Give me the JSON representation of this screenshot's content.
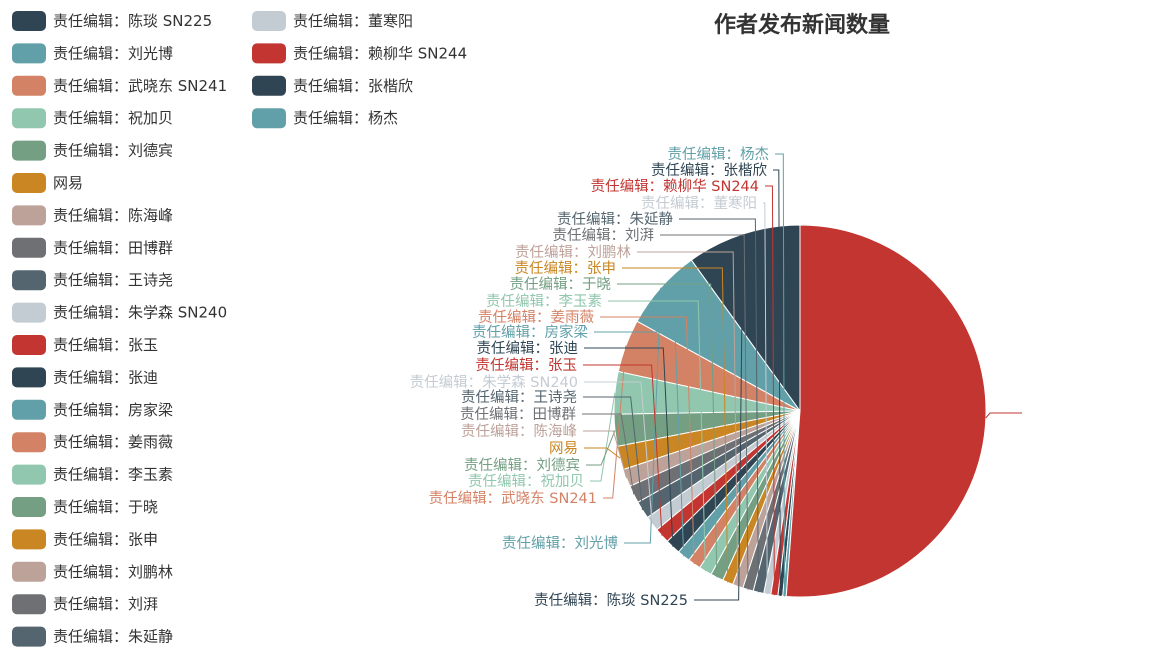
{
  "chart_data": {
    "type": "pie",
    "title": "作者发布新闻数量",
    "label_left": "责任编辑：",
    "categories": [
      "陈琰 SN225",
      "刘光博",
      "武晓东 SN241",
      "祝加贝",
      "刘德宾",
      "网易",
      "陈海峰",
      "田博群",
      "王诗尧",
      "朱学森 SN240",
      "张玉",
      "张迪",
      "房家梁",
      "姜雨薇",
      "李玉素",
      "于晓",
      "张申",
      "刘鹏林",
      "刘湃",
      "朱延静",
      "董寒阳",
      "赖柳华 SN244",
      "张楷欣",
      "杨杰"
    ],
    "slices": [
      {
        "name": "陈琰 SN225",
        "value": 9.7,
        "color": "#2f4554",
        "prefixed": true
      },
      {
        "name": "刘光博",
        "value": 6.9,
        "color": "#61a0a8",
        "prefixed": true
      },
      {
        "name": "武晓东 SN241",
        "value": 4.5,
        "color": "#d48265",
        "prefixed": true
      },
      {
        "name": "祝加贝",
        "value": 3.6,
        "color": "#91c7ae",
        "prefixed": true
      },
      {
        "name": "刘德宾",
        "value": 2.7,
        "color": "#749f83",
        "prefixed": true
      },
      {
        "name": "网易",
        "value": 2.0,
        "color": "#ca8622",
        "prefixed": false
      },
      {
        "name": "陈海峰",
        "value": 1.5,
        "color": "#bda29a",
        "prefixed": true
      },
      {
        "name": "田博群",
        "value": 1.5,
        "color": "#6e7074",
        "prefixed": true
      },
      {
        "name": "王诗尧",
        "value": 1.5,
        "color": "#546570",
        "prefixed": true
      },
      {
        "name": "朱学森 SN240",
        "value": 1.3,
        "color": "#c4ccd3",
        "prefixed": true
      },
      {
        "name": "张玉",
        "value": 1.3,
        "color": "#c23531",
        "prefixed": true
      },
      {
        "name": "张迪",
        "value": 1.3,
        "color": "#2f4554",
        "prefixed": true
      },
      {
        "name": "房家梁",
        "value": 1.1,
        "color": "#61a0a8",
        "prefixed": true
      },
      {
        "name": "姜雨薇",
        "value": 1.1,
        "color": "#d48265",
        "prefixed": true
      },
      {
        "name": "李玉素",
        "value": 1.1,
        "color": "#91c7ae",
        "prefixed": true
      },
      {
        "name": "于晓",
        "value": 1.1,
        "color": "#749f83",
        "prefixed": true
      },
      {
        "name": "张申",
        "value": 0.9,
        "color": "#ca8622",
        "prefixed": true
      },
      {
        "name": "刘鹏林",
        "value": 0.9,
        "color": "#bda29a",
        "prefixed": true
      },
      {
        "name": "刘湃",
        "value": 0.9,
        "color": "#6e7074",
        "prefixed": true
      },
      {
        "name": "朱延静",
        "value": 0.9,
        "color": "#546570",
        "prefixed": true
      },
      {
        "name": "董寒阳",
        "value": 0.6,
        "color": "#c4ccd3",
        "prefixed": true
      },
      {
        "name": "赖柳华 SN244",
        "value": 0.6,
        "color": "#c23531",
        "prefixed": true
      },
      {
        "name": "张楷欣",
        "value": 0.4,
        "color": "#2f4554",
        "prefixed": true
      },
      {
        "name": "杨杰",
        "value": 0.3,
        "color": "#61a0a8",
        "prefixed": true
      },
      {
        "name": "",
        "value": 50.0,
        "color": "#c23531",
        "prefixed": false
      }
    ],
    "legend_position": "left",
    "legend_columns": 2
  }
}
